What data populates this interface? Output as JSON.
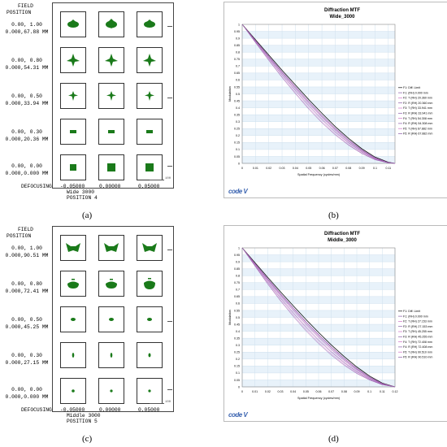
{
  "panels": {
    "a": {
      "label": "(a)",
      "field_title_1": "FIELD",
      "field_title_2": "POSITION",
      "rows": [
        {
          "l1": "0.00, 1.00",
          "l2": "0.000,67.88 MM"
        },
        {
          "l1": "0.00, 0.80",
          "l2": "0.000,54.31 MM"
        },
        {
          "l1": "0.00, 0.50",
          "l2": "0.000,33.94 MM"
        },
        {
          "l1": "0.00, 0.30",
          "l2": "0.000,20.36 MM"
        },
        {
          "l1": "0.00, 0.00",
          "l2": "0.000,0.000 MM"
        }
      ],
      "defocusing_label": "DEFOCUSING",
      "defocus_values": [
        "-0.05000",
        "0.00000",
        "0.05000"
      ],
      "config_name": "Wide 3000",
      "config_position": "POSITION 4",
      "scale_text": "100"
    },
    "c": {
      "label": "(c)",
      "field_title_1": "FIELD",
      "field_title_2": "POSITION",
      "rows": [
        {
          "l1": "0.00, 1.00",
          "l2": "0.000,90.51 MM"
        },
        {
          "l1": "0.00, 0.80",
          "l2": "0.000,72.41 MM"
        },
        {
          "l1": "0.00, 0.50",
          "l2": "0.000,45.25 MM"
        },
        {
          "l1": "0.00, 0.30",
          "l2": "0.000,27.15 MM"
        },
        {
          "l1": "0.00, 0.00",
          "l2": "0.000,0.000 MM"
        }
      ],
      "defocusing_label": "DEFOCUSING",
      "defocus_values": [
        "-0.05000",
        "0.00000",
        "0.05000"
      ],
      "config_name": "Middle 3000",
      "config_position": "POSITION 5",
      "scale_text": "100"
    },
    "b": {
      "label": "(b)"
    },
    "d": {
      "label": "(d)"
    }
  },
  "colors": {
    "spot": "#1a7a1a",
    "grid_band": "#e8f2fa",
    "grid_line": "#cfe0ee",
    "diff_limit": "#111111",
    "tangential": "#8a5aa8",
    "sagittal": "#d070c8",
    "logo": "#3a63b0"
  },
  "logo_text": "code V",
  "chart_data": [
    {
      "type": "line",
      "title": "Diffraction MTF",
      "subtitle": "Wide_3000",
      "xlabel": "Spatial Frequency (cycles/mm)",
      "ylabel": "Modulation",
      "xlim": [
        0,
        0.115
      ],
      "ylim": [
        0,
        1
      ],
      "x_ticks": [
        "0",
        "0.01",
        "0.02",
        "0.03",
        "0.04",
        "0.05",
        "0.06",
        "0.07",
        "0.08",
        "0.09",
        "0.1",
        "0.11"
      ],
      "y_ticks": [
        "0",
        "0.05",
        "0.1",
        "0.15",
        "0.2",
        "0.25",
        "0.3",
        "0.35",
        "0.4",
        "0.45",
        "0.5",
        "0.55",
        "0.6",
        "0.65",
        "0.7",
        "0.75",
        "0.8",
        "0.85",
        "0.9",
        "0.95",
        "1"
      ],
      "grid": true,
      "legend_position": "right",
      "x": [
        0,
        0.01,
        0.02,
        0.03,
        0.04,
        0.05,
        0.06,
        0.07,
        0.08,
        0.09,
        0.1,
        0.11,
        0.115
      ],
      "series": [
        {
          "name": "F1: Diff. Limit",
          "values": [
            1.0,
            0.89,
            0.78,
            0.67,
            0.565,
            0.46,
            0.36,
            0.265,
            0.18,
            0.105,
            0.045,
            0.008,
            0.0
          ]
        },
        {
          "name": "F1: (RH) 0.000 mm",
          "values": [
            1.0,
            0.885,
            0.772,
            0.66,
            0.553,
            0.447,
            0.347,
            0.253,
            0.17,
            0.098,
            0.04,
            0.006,
            0.0
          ]
        },
        {
          "name": "F2: T (RH) 20.360 mm",
          "values": [
            1.0,
            0.885,
            0.771,
            0.659,
            0.552,
            0.446,
            0.346,
            0.252,
            0.169,
            0.097,
            0.04,
            0.006,
            0.0
          ]
        },
        {
          "name": "F2: R (RH) 20.360 mm",
          "values": [
            1.0,
            0.884,
            0.77,
            0.658,
            0.55,
            0.444,
            0.344,
            0.25,
            0.167,
            0.096,
            0.039,
            0.006,
            0.0
          ]
        },
        {
          "name": "F3: T (RH) 33.941 mm",
          "values": [
            1.0,
            0.882,
            0.766,
            0.652,
            0.543,
            0.436,
            0.336,
            0.243,
            0.161,
            0.092,
            0.037,
            0.005,
            0.0
          ]
        },
        {
          "name": "F3: R (RH) 33.941 mm",
          "values": [
            1.0,
            0.881,
            0.764,
            0.649,
            0.539,
            0.432,
            0.332,
            0.24,
            0.158,
            0.09,
            0.036,
            0.005,
            0.0
          ]
        },
        {
          "name": "F4: T (RH) 54.308 mm",
          "values": [
            1.0,
            0.878,
            0.758,
            0.641,
            0.529,
            0.421,
            0.321,
            0.23,
            0.15,
            0.084,
            0.033,
            0.004,
            0.0
          ]
        },
        {
          "name": "F4: R (RH) 54.308 mm",
          "values": [
            1.0,
            0.876,
            0.754,
            0.636,
            0.523,
            0.414,
            0.314,
            0.224,
            0.146,
            0.081,
            0.031,
            0.004,
            0.0
          ]
        },
        {
          "name": "F5: T (RH) 67.882 mm",
          "values": [
            1.0,
            0.872,
            0.746,
            0.625,
            0.51,
            0.4,
            0.3,
            0.212,
            0.136,
            0.074,
            0.028,
            0.003,
            0.0
          ]
        },
        {
          "name": "F5: R (RH) 67.882 mm",
          "values": [
            1.0,
            0.869,
            0.741,
            0.618,
            0.502,
            0.392,
            0.292,
            0.205,
            0.131,
            0.071,
            0.026,
            0.003,
            0.0
          ]
        }
      ]
    },
    {
      "type": "line",
      "title": "Diffraction MTF",
      "subtitle": "Middle_3000",
      "xlabel": "Spatial Frequency (cycles/mm)",
      "ylabel": "Modulation",
      "xlim": [
        0,
        0.12
      ],
      "ylim": [
        0,
        1
      ],
      "x_ticks": [
        "0",
        "0.01",
        "0.02",
        "0.03",
        "0.04",
        "0.05",
        "0.06",
        "0.07",
        "0.08",
        "0.09",
        "0.1",
        "0.11",
        "0.12"
      ],
      "y_ticks": [
        "0",
        "0.05",
        "0.1",
        "0.15",
        "0.2",
        "0.25",
        "0.3",
        "0.35",
        "0.4",
        "0.45",
        "0.5",
        "0.55",
        "0.6",
        "0.65",
        "0.7",
        "0.75",
        "0.8",
        "0.85",
        "0.9",
        "0.95",
        "1"
      ],
      "grid": true,
      "legend_position": "right",
      "x": [
        0,
        0.01,
        0.02,
        0.03,
        0.04,
        0.05,
        0.06,
        0.07,
        0.08,
        0.09,
        0.1,
        0.11,
        0.12
      ],
      "series": [
        {
          "name": "F1: Diff. Limit",
          "values": [
            1.0,
            0.894,
            0.789,
            0.685,
            0.584,
            0.486,
            0.392,
            0.302,
            0.219,
            0.143,
            0.078,
            0.027,
            0.0
          ]
        },
        {
          "name": "F1: (RH) 0.000 mm",
          "values": [
            1.0,
            0.889,
            0.78,
            0.673,
            0.57,
            0.471,
            0.377,
            0.289,
            0.207,
            0.134,
            0.072,
            0.024,
            0.0
          ]
        },
        {
          "name": "F2: T (RH) 27.153 mm",
          "values": [
            1.0,
            0.888,
            0.778,
            0.671,
            0.568,
            0.468,
            0.374,
            0.286,
            0.205,
            0.132,
            0.071,
            0.024,
            0.0
          ]
        },
        {
          "name": "F2: R (RH) 27.153 mm",
          "values": [
            1.0,
            0.887,
            0.776,
            0.668,
            0.565,
            0.465,
            0.371,
            0.283,
            0.202,
            0.13,
            0.07,
            0.023,
            0.0
          ]
        },
        {
          "name": "F3: T (RH) 45.255 mm",
          "values": [
            1.0,
            0.885,
            0.772,
            0.662,
            0.557,
            0.456,
            0.362,
            0.275,
            0.195,
            0.125,
            0.066,
            0.022,
            0.0
          ]
        },
        {
          "name": "F3: R (RH) 45.255 mm",
          "values": [
            1.0,
            0.883,
            0.768,
            0.657,
            0.551,
            0.45,
            0.356,
            0.269,
            0.19,
            0.121,
            0.064,
            0.021,
            0.0
          ]
        },
        {
          "name": "F4: T (RH) 72.408 mm",
          "values": [
            1.0,
            0.879,
            0.76,
            0.646,
            0.538,
            0.436,
            0.342,
            0.256,
            0.179,
            0.113,
            0.059,
            0.019,
            0.0
          ]
        },
        {
          "name": "F4: R (RH) 72.408 mm",
          "values": [
            1.0,
            0.876,
            0.755,
            0.639,
            0.53,
            0.428,
            0.334,
            0.249,
            0.173,
            0.109,
            0.056,
            0.018,
            0.0
          ]
        },
        {
          "name": "F5: T (RH) 90.510 mm",
          "values": [
            1.0,
            0.872,
            0.747,
            0.628,
            0.517,
            0.414,
            0.32,
            0.236,
            0.163,
            0.101,
            0.052,
            0.016,
            0.0
          ]
        },
        {
          "name": "F5: R (RH) 90.510 mm",
          "values": [
            1.0,
            0.869,
            0.741,
            0.62,
            0.508,
            0.404,
            0.311,
            0.228,
            0.156,
            0.096,
            0.049,
            0.015,
            0.0
          ]
        }
      ]
    }
  ]
}
